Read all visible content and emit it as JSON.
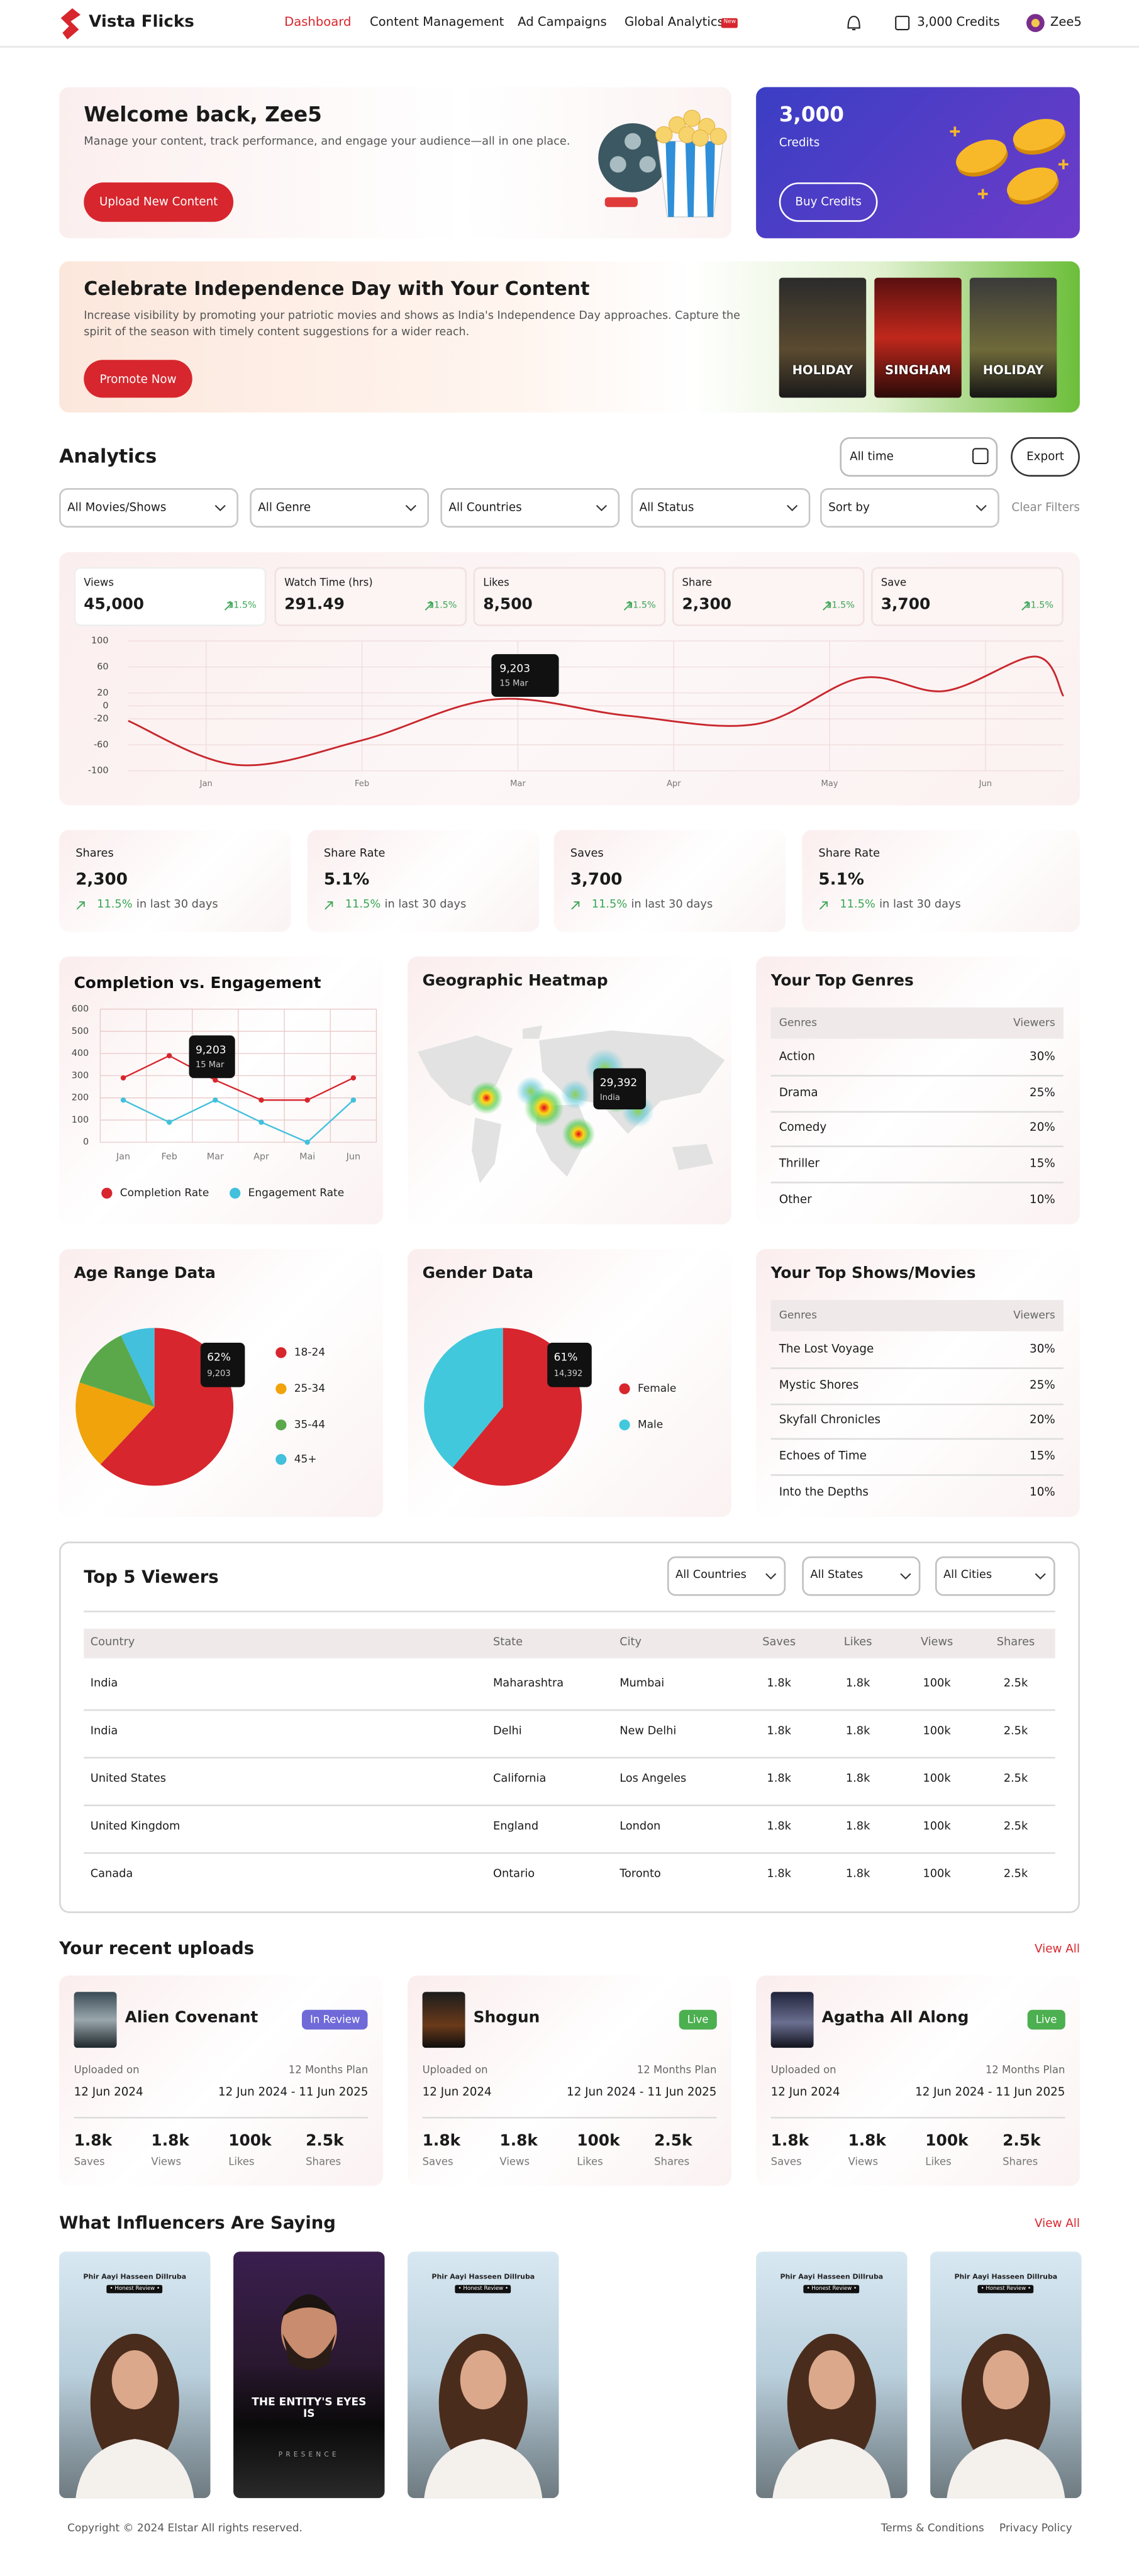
{
  "nav": {
    "logo": "Vista Flicks",
    "links": [
      "Dashboard",
      "Content Management",
      "Ad Campaigns",
      "Global Analytics"
    ],
    "badge": "New",
    "credits": "3,000 Credits",
    "user": "Zee5"
  },
  "welcome": {
    "title": "Welcome back, Zee5",
    "text": "Manage your content, track performance, and engage your audience—all in one place.",
    "button": "Upload New Content"
  },
  "credits": {
    "value": "3,000",
    "label": "Credits",
    "button": "Buy Credits"
  },
  "promo": {
    "title": "Celebrate Independence Day with Your Content",
    "text": "Increase visibility by promoting your patriotic movies and shows as India's Independence Day approaches. Capture the spirit of the season with timely content suggestions for a wider reach.",
    "button": "Promote Now",
    "posters": [
      "HOLIDAY",
      "SINGHAM",
      "HOLIDAY"
    ]
  },
  "analytics": {
    "title": "Analytics",
    "date": "All time",
    "export": "Export",
    "filters": [
      "All Movies/Shows",
      "All Genre",
      "All Countries",
      "All Status",
      "Sort by"
    ],
    "clear": "Clear Filters",
    "stats": [
      {
        "label": "Views",
        "value": "45,000",
        "change": "11.5%"
      },
      {
        "label": "Watch Time (hrs)",
        "value": "291.49",
        "change": "11.5%"
      },
      {
        "label": "Likes",
        "value": "8,500",
        "change": "11.5%"
      },
      {
        "label": "Share",
        "value": "2,300",
        "change": "11.5%"
      },
      {
        "label": "Save",
        "value": "3,700",
        "change": "11.5%"
      }
    ]
  },
  "chart_data": [
    {
      "type": "line",
      "x": [
        0.5,
        1.2,
        2.0,
        2.85,
        3.7,
        4.53,
        5.2,
        5.74,
        6.32,
        6.5
      ],
      "series": [
        {
          "color": "#c8282e",
          "values": [
            -23,
            -91,
            -53,
            10,
            -15,
            -28,
            43,
            23,
            76,
            15
          ]
        }
      ],
      "xlim": [
        0.5,
        6.5
      ],
      "xticks": [
        {
          "value": 1,
          "label": "Jan"
        },
        {
          "value": 2,
          "label": "Feb"
        },
        {
          "value": 3,
          "label": "Mar"
        },
        {
          "value": 4,
          "label": "Apr"
        },
        {
          "value": 5,
          "label": "May"
        },
        {
          "value": 6,
          "label": "Jun"
        }
      ],
      "ylim": [
        -100,
        100
      ],
      "yticks": [
        100,
        60,
        20,
        0,
        -20,
        -60,
        -100
      ],
      "grid": true,
      "tooltip": {
        "value": "9,203",
        "label": "15 Mar"
      }
    },
    {
      "type": "line",
      "title": "Completion vs. Engagement",
      "categories": [
        "Jan",
        "Feb",
        "Mar",
        "Apr",
        "Mai",
        "Jun"
      ],
      "series": [
        {
          "name": "Completion Rate",
          "color": "#d7262d",
          "values": [
            290,
            390,
            280,
            190,
            190,
            290
          ]
        },
        {
          "name": "Engagement Rate",
          "color": "#42c0dc",
          "values": [
            190,
            90,
            190,
            90,
            0,
            190
          ]
        }
      ],
      "ylim": [
        0,
        600
      ],
      "yticks": [
        0,
        100,
        200,
        300,
        400,
        500,
        600
      ],
      "grid": true,
      "legend": "bottom",
      "tooltip": {
        "value": "9,203",
        "label": "15 Mar"
      }
    },
    {
      "type": "pie",
      "title": "Age Range Data",
      "categories": [
        "18-24",
        "25-34",
        "35-44",
        "45+"
      ],
      "values": [
        62,
        18,
        13,
        7
      ],
      "colors": [
        "#d7262d",
        "#f0a30a",
        "#5aa84a",
        "#42c0dc"
      ],
      "legend": "right",
      "tooltip": {
        "value": "62%",
        "label": "9,203"
      }
    },
    {
      "type": "pie",
      "title": "Gender Data",
      "categories": [
        "Female",
        "Male"
      ],
      "values": [
        61,
        39
      ],
      "colors": [
        "#d7262d",
        "#42c8dc"
      ],
      "legend": "right",
      "tooltip": {
        "value": "61%",
        "label": "14,392"
      }
    }
  ],
  "summary": [
    {
      "label": "Shares",
      "value": "2,300",
      "change": "11.5%",
      "period": "in last 30 days"
    },
    {
      "label": "Share Rate",
      "value": "5.1%",
      "change": "11.5%",
      "period": "in last 30 days"
    },
    {
      "label": "Saves",
      "value": "3,700",
      "change": "11.5%",
      "period": "in last 30 days"
    },
    {
      "label": "Share Rate",
      "value": "5.1%",
      "change": "11.5%",
      "period": "in last 30 days"
    }
  ],
  "heatmap": {
    "title": "Geographic Heatmap",
    "tooltip": {
      "value": "29,392",
      "label": "India"
    }
  },
  "top_genres": {
    "title": "Your Top Genres",
    "header": [
      "Genres",
      "Viewers"
    ],
    "rows": [
      [
        "Action",
        "30%"
      ],
      [
        "Drama",
        "25%"
      ],
      [
        "Comedy",
        "20%"
      ],
      [
        "Thriller",
        "15%"
      ],
      [
        "Other",
        "10%"
      ]
    ]
  },
  "top_shows": {
    "title": "Your Top Shows/Movies",
    "header": [
      "Genres",
      "Viewers"
    ],
    "rows": [
      [
        "The Lost Voyage",
        "30%"
      ],
      [
        "Mystic Shores",
        "25%"
      ],
      [
        "Skyfall Chronicles",
        "20%"
      ],
      [
        "Echoes of Time",
        "15%"
      ],
      [
        "Into the Depths",
        "10%"
      ]
    ]
  },
  "viewers": {
    "title": "Top 5 Viewers",
    "filters": [
      "All Countries",
      "All States",
      "All Cities"
    ],
    "header": [
      "Country",
      "State",
      "City",
      "Saves",
      "Likes",
      "Views",
      "Shares"
    ],
    "rows": [
      [
        "India",
        "Maharashtra",
        "Mumbai",
        "1.8k",
        "1.8k",
        "100k",
        "2.5k"
      ],
      [
        "India",
        "Delhi",
        "New Delhi",
        "1.8k",
        "1.8k",
        "100k",
        "2.5k"
      ],
      [
        "United States",
        "California",
        "Los Angeles",
        "1.8k",
        "1.8k",
        "100k",
        "2.5k"
      ],
      [
        "United Kingdom",
        "England",
        "London",
        "1.8k",
        "1.8k",
        "100k",
        "2.5k"
      ],
      [
        "Canada",
        "Ontario",
        "Toronto",
        "1.8k",
        "1.8k",
        "100k",
        "2.5k"
      ]
    ]
  },
  "uploads": {
    "title": "Your recent uploads",
    "view_all": "View All",
    "cards": [
      {
        "title": "Alien Covenant",
        "status": "In Review",
        "color": "#6f6ad8",
        "uploaded_label": "Uploaded on",
        "uploaded": "12 Jun 2024",
        "plan": "12 Months Plan",
        "period": "12 Jun 2024 - 11 Jun 2025",
        "stats": [
          {
            "value": "1.8k",
            "label": "Saves"
          },
          {
            "value": "1.8k",
            "label": "Views"
          },
          {
            "value": "100k",
            "label": "Likes"
          },
          {
            "value": "2.5k",
            "label": "Shares"
          }
        ]
      },
      {
        "title": "Shogun",
        "status": "Live",
        "color": "#4caf50",
        "uploaded_label": "Uploaded on",
        "uploaded": "12 Jun 2024",
        "plan": "12 Months Plan",
        "period": "12 Jun 2024 - 11 Jun 2025",
        "stats": [
          {
            "value": "1.8k",
            "label": "Saves"
          },
          {
            "value": "1.8k",
            "label": "Views"
          },
          {
            "value": "100k",
            "label": "Likes"
          },
          {
            "value": "2.5k",
            "label": "Shares"
          }
        ]
      },
      {
        "title": "Agatha All Along",
        "status": "Live",
        "color": "#4caf50",
        "uploaded_label": "Uploaded on",
        "uploaded": "12 Jun 2024",
        "plan": "12 Months Plan",
        "period": "12 Jun 2024 - 11 Jun 2025",
        "stats": [
          {
            "value": "1.8k",
            "label": "Saves"
          },
          {
            "value": "1.8k",
            "label": "Views"
          },
          {
            "value": "100k",
            "label": "Likes"
          },
          {
            "value": "2.5k",
            "label": "Shares"
          }
        ]
      }
    ]
  },
  "influencers": {
    "title": "What Influencers Are Saying",
    "view_all": "View All",
    "cards": [
      {
        "title": "Phir Aayi Hasseen Dillruba",
        "tag": "• Honest Review •"
      },
      {
        "headline": "THE ENTITY'S EYES IS",
        "sub": "PRESENCE"
      },
      {
        "title": "Phir Aayi Hasseen Dillruba",
        "tag": "• Honest Review •"
      },
      {
        "title": "Phir Aayi Hasseen Dillruba",
        "tag": "• Honest Review •"
      },
      {
        "title": "Phir Aayi Hasseen Dillruba",
        "tag": "• Honest Review •"
      }
    ]
  },
  "footer": {
    "copyright": "Copyright © 2024 Elstar All rights reserved.",
    "links": [
      "Terms & Conditions",
      "Privacy Policy"
    ]
  }
}
